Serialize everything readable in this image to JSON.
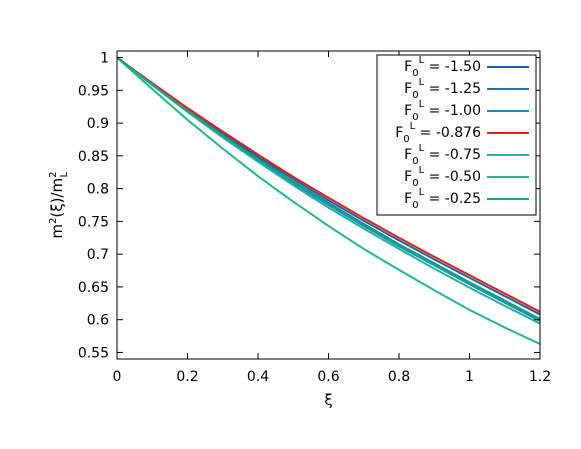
{
  "chart_data": {
    "type": "line",
    "title": "",
    "xlabel": "ξ",
    "ylabel": "m²(ξ)/m²L",
    "xlim": [
      0,
      1.2
    ],
    "ylim": [
      0.54,
      1.01
    ],
    "xticks": [
      {
        "value": 0,
        "label": "0"
      },
      {
        "value": 0.2,
        "label": "0.2"
      },
      {
        "value": 0.4,
        "label": "0.4"
      },
      {
        "value": 0.6,
        "label": "0.6"
      },
      {
        "value": 0.8,
        "label": "0.8"
      },
      {
        "value": 1.0,
        "label": "1"
      },
      {
        "value": 1.2,
        "label": "1.2"
      }
    ],
    "yticks": [
      {
        "value": 0.55,
        "label": "0.55"
      },
      {
        "value": 0.6,
        "label": "0.6"
      },
      {
        "value": 0.65,
        "label": "0.65"
      },
      {
        "value": 0.7,
        "label": "0.7"
      },
      {
        "value": 0.75,
        "label": "0.75"
      },
      {
        "value": 0.8,
        "label": "0.8"
      },
      {
        "value": 0.85,
        "label": "0.85"
      },
      {
        "value": 0.9,
        "label": "0.9"
      },
      {
        "value": 0.95,
        "label": "0.95"
      },
      {
        "value": 1.0,
        "label": "1"
      }
    ],
    "grid": false,
    "legend_position": "top-right",
    "series": [
      {
        "name": "-1.50",
        "color": "#1565a8",
        "x": [
          0,
          0.1,
          0.2,
          0.3,
          0.4,
          0.5,
          0.6,
          0.7,
          0.8,
          0.9,
          1.0,
          1.1,
          1.2
        ],
        "y": [
          1.0,
          0.96,
          0.922,
          0.885,
          0.849,
          0.815,
          0.782,
          0.751,
          0.721,
          0.692,
          0.664,
          0.636,
          0.608
        ]
      },
      {
        "name": "-1.25",
        "color": "#1a74b0",
        "x": [
          0,
          0.1,
          0.2,
          0.3,
          0.4,
          0.5,
          0.6,
          0.7,
          0.8,
          0.9,
          1.0,
          1.1,
          1.2
        ],
        "y": [
          1.0,
          0.959,
          0.92,
          0.882,
          0.846,
          0.811,
          0.778,
          0.746,
          0.715,
          0.686,
          0.657,
          0.629,
          0.601
        ]
      },
      {
        "name": "-1.00",
        "color": "#1c8ab4",
        "x": [
          0,
          0.1,
          0.2,
          0.3,
          0.4,
          0.5,
          0.6,
          0.7,
          0.8,
          0.9,
          1.0,
          1.1,
          1.2
        ],
        "y": [
          1.0,
          0.959,
          0.918,
          0.88,
          0.843,
          0.808,
          0.775,
          0.743,
          0.712,
          0.683,
          0.654,
          0.626,
          0.598
        ]
      },
      {
        "name": "-0.876",
        "color": "#e3201b",
        "x": [
          0,
          0.1,
          0.2,
          0.3,
          0.4,
          0.5,
          0.6,
          0.7,
          0.8,
          0.9,
          1.0,
          1.1,
          1.2
        ],
        "y": [
          1.0,
          0.961,
          0.923,
          0.887,
          0.852,
          0.818,
          0.786,
          0.755,
          0.725,
          0.696,
          0.668,
          0.64,
          0.612
        ]
      },
      {
        "name": "-0.75",
        "color": "#21b0ab",
        "x": [
          0,
          0.1,
          0.2,
          0.3,
          0.4,
          0.5,
          0.6,
          0.7,
          0.8,
          0.9,
          1.0,
          1.1,
          1.2
        ],
        "y": [
          1.0,
          0.958,
          0.917,
          0.878,
          0.841,
          0.805,
          0.771,
          0.739,
          0.708,
          0.678,
          0.649,
          0.621,
          0.594
        ]
      },
      {
        "name": "-0.50",
        "color": "#1fb98e",
        "x": [
          0,
          0.1,
          0.2,
          0.3,
          0.4,
          0.5,
          0.6,
          0.7,
          0.8,
          0.9,
          1.0,
          1.1,
          1.2
        ],
        "y": [
          1.0,
          0.952,
          0.905,
          0.861,
          0.819,
          0.78,
          0.743,
          0.708,
          0.676,
          0.645,
          0.615,
          0.588,
          0.563
        ]
      },
      {
        "name": "-0.25",
        "color": "#17a67c",
        "x": [
          0,
          0.1,
          0.2,
          0.3,
          0.4,
          0.5,
          0.6,
          0.7,
          0.8,
          0.9,
          1.0,
          1.1,
          1.2
        ],
        "y": [
          1.0,
          0.959,
          0.919,
          0.881,
          0.844,
          0.81,
          0.776,
          0.744,
          0.714,
          0.684,
          0.656,
          0.628,
          0.6
        ]
      }
    ],
    "legend": {
      "label_prefix": "F",
      "label_sub": "0",
      "label_sup": "L",
      "label_eq": " = "
    }
  }
}
